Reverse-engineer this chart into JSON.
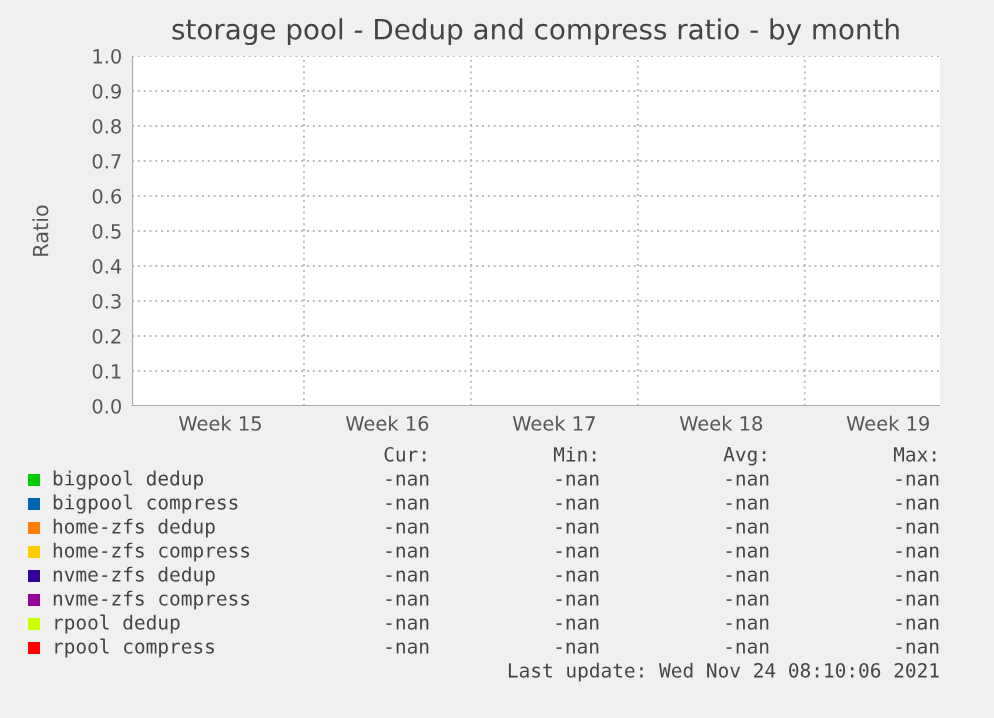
{
  "chart_data": {
    "type": "line",
    "title": "storage pool - Dedup and compress ratio - by month",
    "ylabel": "Ratio",
    "categories": [
      "Week 15",
      "Week 16",
      "Week 17",
      "Week 18",
      "Week 19"
    ],
    "ylim": [
      0,
      1
    ],
    "yticks": [
      {
        "value": 0,
        "label": "0.0"
      },
      {
        "value": 0.1,
        "label": "0.1"
      },
      {
        "value": 0.2,
        "label": "0.2"
      },
      {
        "value": 0.3,
        "label": "0.3"
      },
      {
        "value": 0.4,
        "label": "0.4"
      },
      {
        "value": 0.5,
        "label": "0.5"
      },
      {
        "value": 0.6,
        "label": "0.6"
      },
      {
        "value": 0.7,
        "label": "0.7"
      },
      {
        "value": 0.8,
        "label": "0.8"
      },
      {
        "value": 0.9,
        "label": "0.9"
      },
      {
        "value": 1,
        "label": "1.0"
      }
    ],
    "grid": true,
    "legend": "bottom",
    "series": [
      {
        "name": "bigpool dedup",
        "color": "#00cc00",
        "values": [
          null,
          null,
          null,
          null,
          null
        ]
      },
      {
        "name": "bigpool compress",
        "color": "#0066b3",
        "values": [
          null,
          null,
          null,
          null,
          null
        ]
      },
      {
        "name": "home-zfs dedup",
        "color": "#ff8000",
        "values": [
          null,
          null,
          null,
          null,
          null
        ]
      },
      {
        "name": "home-zfs compress",
        "color": "#ffcc00",
        "values": [
          null,
          null,
          null,
          null,
          null
        ]
      },
      {
        "name": "nvme-zfs dedup",
        "color": "#330099",
        "values": [
          null,
          null,
          null,
          null,
          null
        ]
      },
      {
        "name": "nvme-zfs compress",
        "color": "#990099",
        "values": [
          null,
          null,
          null,
          null,
          null
        ]
      },
      {
        "name": "rpool dedup",
        "color": "#ccff00",
        "values": [
          null,
          null,
          null,
          null,
          null
        ]
      },
      {
        "name": "rpool compress",
        "color": "#ff0000",
        "values": [
          null,
          null,
          null,
          null,
          null
        ]
      }
    ],
    "annotations": [
      "Cur:",
      "Min:",
      "Avg:",
      "Max:",
      "-nan",
      "-nan",
      "-nan",
      "-nan",
      "-nan",
      "-nan",
      "-nan",
      "-nan",
      "-nan",
      "-nan",
      "-nan",
      "-nan",
      "-nan",
      "-nan",
      "-nan",
      "-nan",
      "-nan",
      "-nan",
      "-nan",
      "-nan",
      "-nan",
      "-nan",
      "-nan",
      "-nan",
      "-nan",
      "-nan",
      "-nan",
      "-nan",
      "-nan",
      "-nan",
      "-nan",
      "-nan",
      "Last update: Wed Nov 24 08:10:06 2021"
    ]
  }
}
